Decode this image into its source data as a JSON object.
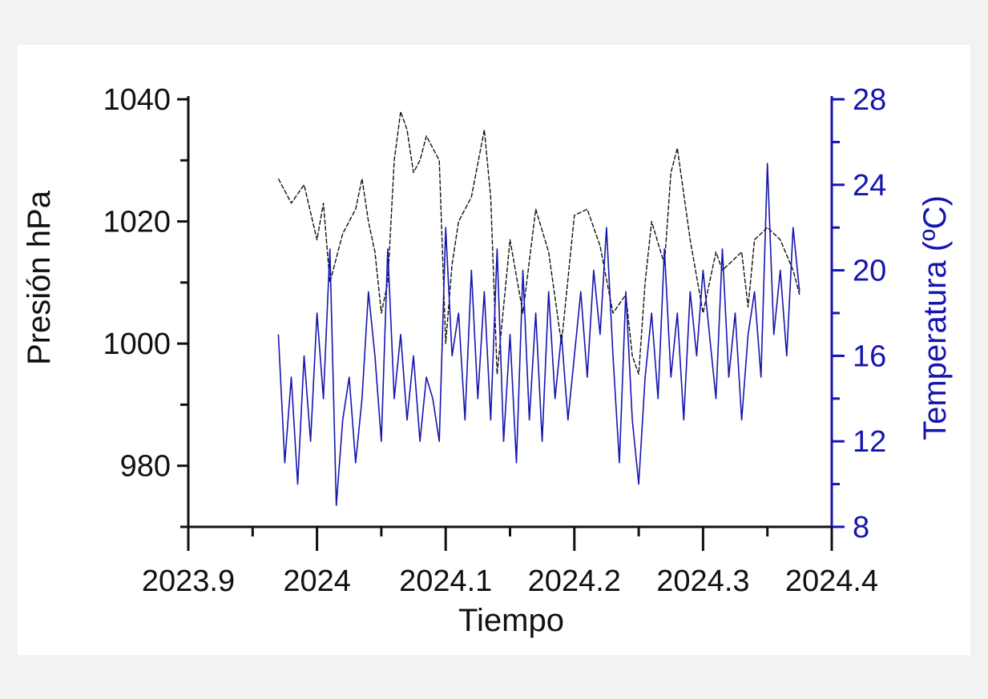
{
  "chart_data": {
    "type": "line",
    "title": "",
    "xlabel": "Tiempo",
    "ylabel_left": "Presión hPa",
    "ylabel_right": "Temperatura (ºC)",
    "xlim": [
      2023.9,
      2024.4
    ],
    "ylim_left": [
      970,
      1040
    ],
    "ylim_right": [
      8,
      28
    ],
    "x_ticks": [
      2023.9,
      2024,
      2024.1,
      2024.2,
      2024.3,
      2024.4
    ],
    "x_tick_labels": [
      "2023.9",
      "2024",
      "2024.1",
      "2024.2",
      "2024.3",
      "2024.4"
    ],
    "left_ticks": [
      980,
      1000,
      1020,
      1040
    ],
    "left_tick_labels": [
      "980",
      "1000",
      "1020",
      "1040"
    ],
    "right_ticks": [
      8,
      12,
      16,
      20,
      24,
      28
    ],
    "right_tick_labels": [
      "8",
      "12",
      "16",
      "20",
      "24",
      "28"
    ],
    "colors": {
      "pressure": "#111111",
      "temperature": "#1515b0",
      "right_axis": "#1515b0",
      "left_axis": "#111111"
    },
    "series": [
      {
        "name": "Presión",
        "axis": "left",
        "x": [
          2023.97,
          2023.98,
          2023.99,
          2024.0,
          2024.005,
          2024.01,
          2024.02,
          2024.03,
          2024.035,
          2024.04,
          2024.045,
          2024.05,
          2024.055,
          2024.06,
          2024.065,
          2024.07,
          2024.075,
          2024.08,
          2024.085,
          2024.09,
          2024.095,
          2024.1,
          2024.105,
          2024.11,
          2024.12,
          2024.13,
          2024.135,
          2024.14,
          2024.15,
          2024.16,
          2024.17,
          2024.18,
          2024.19,
          2024.2,
          2024.21,
          2024.22,
          2024.23,
          2024.24,
          2024.245,
          2024.25,
          2024.255,
          2024.26,
          2024.27,
          2024.275,
          2024.28,
          2024.29,
          2024.3,
          2024.31,
          2024.315,
          2024.32,
          2024.33,
          2024.335,
          2024.34,
          2024.35,
          2024.36,
          2024.37,
          2024.375
        ],
        "values": [
          1027,
          1023,
          1026,
          1017,
          1023,
          1010,
          1018,
          1022,
          1027,
          1020,
          1015,
          1005,
          1010,
          1030,
          1038,
          1035,
          1028,
          1030,
          1034,
          1032,
          1030,
          1000,
          1013,
          1020,
          1024,
          1035,
          1024,
          995,
          1017,
          1005,
          1022,
          1015,
          1000,
          1021,
          1022,
          1016,
          1005,
          1008,
          998,
          995,
          1010,
          1020,
          1013,
          1028,
          1032,
          1017,
          1005,
          1015,
          1012,
          1013,
          1015,
          1006,
          1017,
          1019,
          1017,
          1012,
          1008
        ]
      },
      {
        "name": "Temperatura",
        "axis": "right",
        "x": [
          2023.97,
          2023.975,
          2023.98,
          2023.985,
          2023.99,
          2023.995,
          2024.0,
          2024.005,
          2024.01,
          2024.015,
          2024.02,
          2024.025,
          2024.03,
          2024.035,
          2024.04,
          2024.045,
          2024.05,
          2024.055,
          2024.06,
          2024.065,
          2024.07,
          2024.075,
          2024.08,
          2024.085,
          2024.09,
          2024.095,
          2024.1,
          2024.105,
          2024.11,
          2024.115,
          2024.12,
          2024.125,
          2024.13,
          2024.135,
          2024.14,
          2024.145,
          2024.15,
          2024.155,
          2024.16,
          2024.165,
          2024.17,
          2024.175,
          2024.18,
          2024.185,
          2024.19,
          2024.195,
          2024.2,
          2024.205,
          2024.21,
          2024.215,
          2024.22,
          2024.225,
          2024.23,
          2024.235,
          2024.24,
          2024.245,
          2024.25,
          2024.255,
          2024.26,
          2024.265,
          2024.27,
          2024.275,
          2024.28,
          2024.285,
          2024.29,
          2024.295,
          2024.3,
          2024.305,
          2024.31,
          2024.315,
          2024.32,
          2024.325,
          2024.33,
          2024.335,
          2024.34,
          2024.345,
          2024.35,
          2024.355,
          2024.36,
          2024.365,
          2024.37,
          2024.375
        ],
        "values": [
          17,
          11,
          15,
          10,
          16,
          12,
          18,
          14,
          21,
          9,
          13,
          15,
          11,
          14,
          19,
          16,
          12,
          21,
          14,
          17,
          13,
          16,
          12,
          15,
          14,
          12,
          22,
          16,
          18,
          13,
          20,
          14,
          19,
          13,
          21,
          12,
          17,
          11,
          20,
          13,
          18,
          12,
          19,
          14,
          17,
          13,
          16,
          19,
          15,
          20,
          17,
          22,
          16,
          11,
          19,
          13,
          10,
          15,
          18,
          14,
          21,
          15,
          18,
          13,
          19,
          16,
          20,
          17,
          14,
          21,
          15,
          18,
          13,
          17,
          19,
          15,
          25,
          17,
          20,
          16,
          22,
          19
        ]
      }
    ]
  }
}
